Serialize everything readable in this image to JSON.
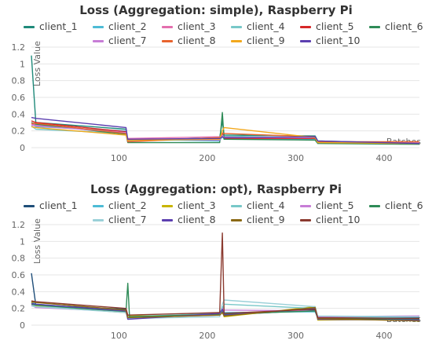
{
  "chart_data": [
    {
      "type": "line",
      "title": "Loss (Aggregation: simple), Raspberry Pi",
      "ylabel": "Loss Value",
      "xlabel": "Batches",
      "ylim": [
        0,
        1.2
      ],
      "xlim": [
        1,
        440
      ],
      "yticks": [
        "0",
        "0.2",
        "0.4",
        "0.6",
        "0.8",
        "1",
        "1.2"
      ],
      "xticks": [
        "100",
        "200",
        "300",
        "400"
      ],
      "grid": true,
      "legend": "top",
      "series": [
        {
          "name": "client_1",
          "color": "#1f8a7a",
          "points": [
            [
              1,
              1.1
            ],
            [
              6,
              0.3
            ],
            [
              108,
              0.22
            ],
            [
              110,
              0.08
            ],
            [
              214,
              0.12
            ],
            [
              217,
              0.32
            ],
            [
              219,
              0.15
            ],
            [
              322,
              0.14
            ],
            [
              325,
              0.08
            ],
            [
              440,
              0.05
            ]
          ]
        },
        {
          "name": "client_2",
          "color": "#4dbbd5",
          "points": [
            [
              1,
              0.3
            ],
            [
              6,
              0.25
            ],
            [
              108,
              0.2
            ],
            [
              110,
              0.1
            ],
            [
              214,
              0.08
            ],
            [
              217,
              0.14
            ],
            [
              219,
              0.1
            ],
            [
              322,
              0.1
            ],
            [
              325,
              0.07
            ],
            [
              440,
              0.05
            ]
          ]
        },
        {
          "name": "client_3",
          "color": "#e36fae",
          "points": [
            [
              1,
              0.28
            ],
            [
              6,
              0.27
            ],
            [
              108,
              0.18
            ],
            [
              110,
              0.11
            ],
            [
              214,
              0.13
            ],
            [
              217,
              0.18
            ],
            [
              219,
              0.13
            ],
            [
              322,
              0.12
            ],
            [
              325,
              0.06
            ],
            [
              440,
              0.06
            ]
          ]
        },
        {
          "name": "client_4",
          "color": "#78c8c8",
          "points": [
            [
              1,
              0.26
            ],
            [
              6,
              0.22
            ],
            [
              108,
              0.17
            ],
            [
              110,
              0.08
            ],
            [
              214,
              0.1
            ],
            [
              217,
              0.12
            ],
            [
              219,
              0.14
            ],
            [
              322,
              0.11
            ],
            [
              325,
              0.07
            ],
            [
              440,
              0.05
            ]
          ]
        },
        {
          "name": "client_5",
          "color": "#d62728",
          "points": [
            [
              1,
              0.32
            ],
            [
              6,
              0.3
            ],
            [
              108,
              0.19
            ],
            [
              110,
              0.09
            ],
            [
              214,
              0.11
            ],
            [
              217,
              0.16
            ],
            [
              219,
              0.11
            ],
            [
              322,
              0.11
            ],
            [
              325,
              0.06
            ],
            [
              440,
              0.05
            ]
          ]
        },
        {
          "name": "client_6",
          "color": "#2e8b57",
          "points": [
            [
              1,
              0.3
            ],
            [
              6,
              0.28
            ],
            [
              108,
              0.16
            ],
            [
              110,
              0.06
            ],
            [
              214,
              0.06
            ],
            [
              217,
              0.42
            ],
            [
              219,
              0.1
            ],
            [
              322,
              0.09
            ],
            [
              325,
              0.05
            ],
            [
              440,
              0.04
            ]
          ]
        },
        {
          "name": "client_7",
          "color": "#c77dd6",
          "points": [
            [
              1,
              0.27
            ],
            [
              6,
              0.26
            ],
            [
              108,
              0.18
            ],
            [
              110,
              0.1
            ],
            [
              214,
              0.09
            ],
            [
              217,
              0.15
            ],
            [
              219,
              0.12
            ],
            [
              322,
              0.12
            ],
            [
              325,
              0.07
            ],
            [
              440,
              0.06
            ]
          ]
        },
        {
          "name": "client_8",
          "color": "#e8632d",
          "points": [
            [
              1,
              0.29
            ],
            [
              6,
              0.29
            ],
            [
              108,
              0.17
            ],
            [
              110,
              0.07
            ],
            [
              214,
              0.12
            ],
            [
              217,
              0.17
            ],
            [
              219,
              0.17
            ],
            [
              322,
              0.13
            ],
            [
              325,
              0.07
            ],
            [
              440,
              0.07
            ]
          ]
        },
        {
          "name": "client_9",
          "color": "#f2a81d",
          "points": [
            [
              1,
              0.25
            ],
            [
              6,
              0.24
            ],
            [
              108,
              0.15
            ],
            [
              110,
              0.09
            ],
            [
              214,
              0.1
            ],
            [
              217,
              0.2
            ],
            [
              219,
              0.24
            ],
            [
              322,
              0.12
            ],
            [
              325,
              0.06
            ],
            [
              440,
              0.05
            ]
          ]
        },
        {
          "name": "client_10",
          "color": "#5c3fb0",
          "points": [
            [
              1,
              0.36
            ],
            [
              6,
              0.35
            ],
            [
              108,
              0.24
            ],
            [
              110,
              0.1
            ],
            [
              214,
              0.11
            ],
            [
              217,
              0.13
            ],
            [
              219,
              0.12
            ],
            [
              322,
              0.13
            ],
            [
              325,
              0.08
            ],
            [
              440,
              0.05
            ]
          ]
        }
      ]
    },
    {
      "type": "line",
      "title": "Loss (Aggregation: opt), Raspberry Pi",
      "ylabel": "Loss Value",
      "xlabel": "Batches",
      "ylim": [
        0,
        1.2
      ],
      "xlim": [
        1,
        440
      ],
      "yticks": [
        "0",
        "0.2",
        "0.4",
        "0.6",
        "0.8",
        "1",
        "1.2"
      ],
      "xticks": [
        "100",
        "200",
        "300",
        "400"
      ],
      "grid": true,
      "legend": "top",
      "series": [
        {
          "name": "client_1",
          "color": "#1f4e79",
          "points": [
            [
              1,
              0.62
            ],
            [
              6,
              0.24
            ],
            [
              108,
              0.19
            ],
            [
              110,
              0.08
            ],
            [
              214,
              0.15
            ],
            [
              217,
              0.18
            ],
            [
              219,
              0.12
            ],
            [
              322,
              0.18
            ],
            [
              325,
              0.08
            ],
            [
              440,
              0.09
            ]
          ]
        },
        {
          "name": "client_2",
          "color": "#4dbbd5",
          "points": [
            [
              1,
              0.28
            ],
            [
              6,
              0.25
            ],
            [
              108,
              0.17
            ],
            [
              110,
              0.09
            ],
            [
              214,
              0.14
            ],
            [
              217,
              0.22
            ],
            [
              219,
              0.15
            ],
            [
              322,
              0.16
            ],
            [
              325,
              0.09
            ],
            [
              440,
              0.1
            ]
          ]
        },
        {
          "name": "client_3",
          "color": "#c8b400",
          "points": [
            [
              1,
              0.27
            ],
            [
              6,
              0.23
            ],
            [
              108,
              0.15
            ],
            [
              110,
              0.11
            ],
            [
              214,
              0.12
            ],
            [
              217,
              0.2
            ],
            [
              219,
              0.1
            ],
            [
              322,
              0.22
            ],
            [
              325,
              0.06
            ],
            [
              440,
              0.07
            ]
          ]
        },
        {
          "name": "client_4",
          "color": "#78c8c8",
          "points": [
            [
              1,
              0.26
            ],
            [
              6,
              0.22
            ],
            [
              108,
              0.18
            ],
            [
              110,
              0.1
            ],
            [
              214,
              0.14
            ],
            [
              217,
              0.18
            ],
            [
              219,
              0.25
            ],
            [
              322,
              0.2
            ],
            [
              325,
              0.1
            ],
            [
              440,
              0.08
            ]
          ]
        },
        {
          "name": "client_5",
          "color": "#c77dd6",
          "points": [
            [
              1,
              0.24
            ],
            [
              6,
              0.21
            ],
            [
              108,
              0.16
            ],
            [
              110,
              0.09
            ],
            [
              214,
              0.12
            ],
            [
              217,
              0.2
            ],
            [
              219,
              0.18
            ],
            [
              322,
              0.17
            ],
            [
              325,
              0.1
            ],
            [
              440,
              0.11
            ]
          ]
        },
        {
          "name": "client_6",
          "color": "#2e8b57",
          "points": [
            [
              1,
              0.25
            ],
            [
              6,
              0.24
            ],
            [
              108,
              0.16
            ],
            [
              110,
              0.5
            ],
            [
              112,
              0.1
            ],
            [
              214,
              0.13
            ],
            [
              217,
              0.16
            ],
            [
              219,
              0.13
            ],
            [
              322,
              0.17
            ],
            [
              325,
              0.08
            ],
            [
              440,
              0.07
            ]
          ]
        },
        {
          "name": "client_7",
          "color": "#9ad0d8",
          "points": [
            [
              1,
              0.23
            ],
            [
              6,
              0.22
            ],
            [
              108,
              0.15
            ],
            [
              110,
              0.08
            ],
            [
              214,
              0.1
            ],
            [
              217,
              0.25
            ],
            [
              219,
              0.3
            ],
            [
              322,
              0.22
            ],
            [
              325,
              0.11
            ],
            [
              440,
              0.1
            ]
          ]
        },
        {
          "name": "client_8",
          "color": "#5c3fb0",
          "points": [
            [
              1,
              0.26
            ],
            [
              6,
              0.25
            ],
            [
              108,
              0.17
            ],
            [
              110,
              0.07
            ],
            [
              214,
              0.14
            ],
            [
              217,
              0.19
            ],
            [
              219,
              0.12
            ],
            [
              322,
              0.2
            ],
            [
              325,
              0.07
            ],
            [
              440,
              0.06
            ]
          ]
        },
        {
          "name": "client_9",
          "color": "#8b6914",
          "points": [
            [
              1,
              0.28
            ],
            [
              6,
              0.27
            ],
            [
              108,
              0.18
            ],
            [
              110,
              0.09
            ],
            [
              214,
              0.12
            ],
            [
              217,
              0.15
            ],
            [
              219,
              0.11
            ],
            [
              322,
              0.21
            ],
            [
              325,
              0.08
            ],
            [
              440,
              0.05
            ]
          ]
        },
        {
          "name": "client_10",
          "color": "#8b3a2f",
          "points": [
            [
              1,
              0.29
            ],
            [
              6,
              0.28
            ],
            [
              108,
              0.2
            ],
            [
              110,
              0.12
            ],
            [
              214,
              0.15
            ],
            [
              217,
              1.1
            ],
            [
              219,
              0.14
            ],
            [
              322,
              0.19
            ],
            [
              325,
              0.09
            ],
            [
              440,
              0.08
            ]
          ]
        }
      ]
    }
  ]
}
